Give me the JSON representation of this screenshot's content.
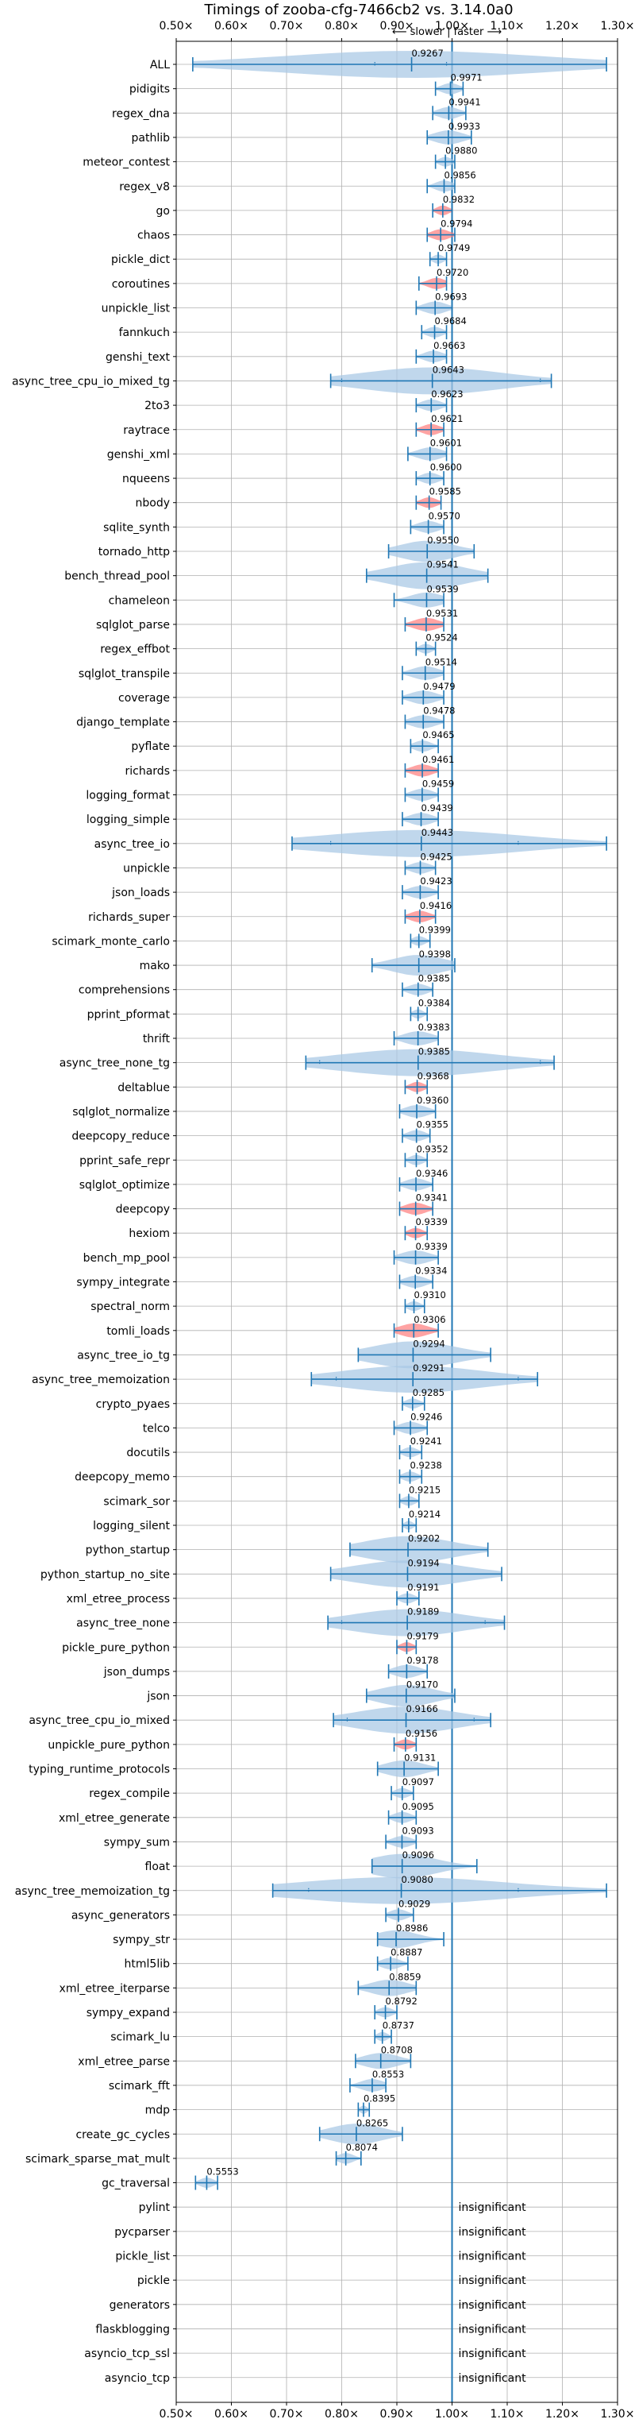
{
  "chart_data": {
    "type": "violin",
    "title": "Timings of zooba-cfg-7466cb2 vs. 3.14.0a0",
    "direction_hint": "⟵ slower | faster ⟶",
    "xlabel": "",
    "ylabel": "",
    "xlim": [
      0.5,
      1.3
    ],
    "x_ticks": [
      0.5,
      0.6,
      0.7,
      0.8,
      0.9,
      1.0,
      1.1,
      1.2,
      1.3
    ],
    "x_tick_labels": [
      "0.50×",
      "0.60×",
      "0.70×",
      "0.80×",
      "0.90×",
      "1.00×",
      "1.10×",
      "1.20×",
      "1.30×"
    ],
    "reference_line": 1.0,
    "grid": true,
    "colors": {
      "normal": "#1f77b4",
      "highlight": "#ff7f7f",
      "body": "#a8c8e4",
      "grid": "#b0b0b0"
    },
    "insignificant_label": "insignificant",
    "benchmarks": [
      {
        "name": "ALL",
        "value": 0.9267,
        "low": 0.53,
        "high": 1.28,
        "q1": 0.86,
        "q3": 0.99,
        "highlight": false
      },
      {
        "name": "pidigits",
        "value": 0.9971,
        "low": 0.97,
        "high": 1.02,
        "highlight": false
      },
      {
        "name": "regex_dna",
        "value": 0.9941,
        "low": 0.965,
        "high": 1.025,
        "highlight": false
      },
      {
        "name": "pathlib",
        "value": 0.9933,
        "low": 0.955,
        "high": 1.035,
        "highlight": false
      },
      {
        "name": "meteor_contest",
        "value": 0.988,
        "low": 0.97,
        "high": 1.005,
        "highlight": false
      },
      {
        "name": "regex_v8",
        "value": 0.9856,
        "low": 0.955,
        "high": 1.005,
        "highlight": false
      },
      {
        "name": "go",
        "value": 0.9832,
        "low": 0.965,
        "high": 1.0,
        "highlight": true
      },
      {
        "name": "chaos",
        "value": 0.9794,
        "low": 0.955,
        "high": 1.005,
        "highlight": true
      },
      {
        "name": "pickle_dict",
        "value": 0.9749,
        "low": 0.96,
        "high": 0.99,
        "highlight": false
      },
      {
        "name": "coroutines",
        "value": 0.972,
        "low": 0.94,
        "high": 0.99,
        "highlight": true
      },
      {
        "name": "unpickle_list",
        "value": 0.9693,
        "low": 0.935,
        "high": 1.0,
        "highlight": false
      },
      {
        "name": "fannkuch",
        "value": 0.9684,
        "low": 0.945,
        "high": 0.99,
        "highlight": false
      },
      {
        "name": "genshi_text",
        "value": 0.9663,
        "low": 0.935,
        "high": 0.99,
        "highlight": false
      },
      {
        "name": "async_tree_cpu_io_mixed_tg",
        "value": 0.9643,
        "low": 0.78,
        "high": 1.18,
        "q1": 0.8,
        "q3": 1.16,
        "highlight": false
      },
      {
        "name": "2to3",
        "value": 0.9623,
        "low": 0.935,
        "high": 0.99,
        "highlight": false
      },
      {
        "name": "raytrace",
        "value": 0.9621,
        "low": 0.935,
        "high": 0.985,
        "highlight": true
      },
      {
        "name": "genshi_xml",
        "value": 0.9601,
        "low": 0.92,
        "high": 0.99,
        "highlight": false
      },
      {
        "name": "nqueens",
        "value": 0.96,
        "low": 0.935,
        "high": 0.985,
        "highlight": false
      },
      {
        "name": "nbody",
        "value": 0.9585,
        "low": 0.935,
        "high": 0.98,
        "highlight": true
      },
      {
        "name": "sqlite_synth",
        "value": 0.957,
        "low": 0.925,
        "high": 0.985,
        "highlight": false
      },
      {
        "name": "tornado_http",
        "value": 0.955,
        "low": 0.885,
        "high": 1.04,
        "highlight": false
      },
      {
        "name": "bench_thread_pool",
        "value": 0.9541,
        "low": 0.845,
        "high": 1.065,
        "highlight": false
      },
      {
        "name": "chameleon",
        "value": 0.9539,
        "low": 0.895,
        "high": 0.985,
        "highlight": false
      },
      {
        "name": "sqlglot_parse",
        "value": 0.9531,
        "low": 0.915,
        "high": 0.985,
        "highlight": true
      },
      {
        "name": "regex_effbot",
        "value": 0.9524,
        "low": 0.935,
        "high": 0.97,
        "highlight": false
      },
      {
        "name": "sqlglot_transpile",
        "value": 0.9514,
        "low": 0.91,
        "high": 0.985,
        "highlight": false
      },
      {
        "name": "coverage",
        "value": 0.9479,
        "low": 0.91,
        "high": 0.985,
        "highlight": false
      },
      {
        "name": "django_template",
        "value": 0.9478,
        "low": 0.915,
        "high": 0.985,
        "highlight": false
      },
      {
        "name": "pyflate",
        "value": 0.9465,
        "low": 0.925,
        "high": 0.975,
        "highlight": false
      },
      {
        "name": "richards",
        "value": 0.9461,
        "low": 0.915,
        "high": 0.975,
        "highlight": true
      },
      {
        "name": "logging_format",
        "value": 0.9459,
        "low": 0.915,
        "high": 0.975,
        "highlight": false
      },
      {
        "name": "logging_simple",
        "value": 0.9439,
        "low": 0.91,
        "high": 0.975,
        "highlight": false
      },
      {
        "name": "async_tree_io",
        "value": 0.9443,
        "low": 0.71,
        "high": 1.28,
        "q1": 0.78,
        "q3": 1.12,
        "highlight": false
      },
      {
        "name": "unpickle",
        "value": 0.9425,
        "low": 0.915,
        "high": 0.97,
        "highlight": false
      },
      {
        "name": "json_loads",
        "value": 0.9423,
        "low": 0.91,
        "high": 0.975,
        "highlight": false
      },
      {
        "name": "richards_super",
        "value": 0.9416,
        "low": 0.915,
        "high": 0.97,
        "highlight": true
      },
      {
        "name": "scimark_monte_carlo",
        "value": 0.9399,
        "low": 0.925,
        "high": 0.96,
        "highlight": false
      },
      {
        "name": "mako",
        "value": 0.9398,
        "low": 0.855,
        "high": 1.005,
        "highlight": false
      },
      {
        "name": "comprehensions",
        "value": 0.9385,
        "low": 0.91,
        "high": 0.965,
        "highlight": false
      },
      {
        "name": "pprint_pformat",
        "value": 0.9384,
        "low": 0.925,
        "high": 0.955,
        "highlight": false
      },
      {
        "name": "thrift",
        "value": 0.9383,
        "low": 0.895,
        "high": 0.975,
        "highlight": false
      },
      {
        "name": "async_tree_none_tg",
        "value": 0.9385,
        "low": 0.735,
        "high": 1.185,
        "q1": 0.76,
        "q3": 1.16,
        "highlight": false
      },
      {
        "name": "deltablue",
        "value": 0.9368,
        "low": 0.915,
        "high": 0.955,
        "highlight": true
      },
      {
        "name": "sqlglot_normalize",
        "value": 0.936,
        "low": 0.905,
        "high": 0.97,
        "highlight": false
      },
      {
        "name": "deepcopy_reduce",
        "value": 0.9355,
        "low": 0.91,
        "high": 0.96,
        "highlight": false
      },
      {
        "name": "pprint_safe_repr",
        "value": 0.9352,
        "low": 0.915,
        "high": 0.955,
        "highlight": false
      },
      {
        "name": "sqlglot_optimize",
        "value": 0.9346,
        "low": 0.905,
        "high": 0.965,
        "highlight": false
      },
      {
        "name": "deepcopy",
        "value": 0.9341,
        "low": 0.905,
        "high": 0.965,
        "highlight": true
      },
      {
        "name": "hexiom",
        "value": 0.9339,
        "low": 0.915,
        "high": 0.955,
        "highlight": true
      },
      {
        "name": "bench_mp_pool",
        "value": 0.9339,
        "low": 0.895,
        "high": 0.975,
        "highlight": false
      },
      {
        "name": "sympy_integrate",
        "value": 0.9334,
        "low": 0.905,
        "high": 0.965,
        "highlight": false
      },
      {
        "name": "spectral_norm",
        "value": 0.931,
        "low": 0.915,
        "high": 0.95,
        "highlight": false
      },
      {
        "name": "tomli_loads",
        "value": 0.9306,
        "low": 0.895,
        "high": 0.975,
        "highlight": true
      },
      {
        "name": "async_tree_io_tg",
        "value": 0.9294,
        "low": 0.83,
        "high": 1.07,
        "highlight": false
      },
      {
        "name": "async_tree_memoization",
        "value": 0.9291,
        "low": 0.745,
        "high": 1.155,
        "q1": 0.79,
        "q3": 1.12,
        "highlight": false
      },
      {
        "name": "crypto_pyaes",
        "value": 0.9285,
        "low": 0.91,
        "high": 0.95,
        "highlight": false
      },
      {
        "name": "telco",
        "value": 0.9246,
        "low": 0.895,
        "high": 0.955,
        "highlight": false
      },
      {
        "name": "docutils",
        "value": 0.9241,
        "low": 0.905,
        "high": 0.945,
        "highlight": false
      },
      {
        "name": "deepcopy_memo",
        "value": 0.9238,
        "low": 0.905,
        "high": 0.945,
        "highlight": false
      },
      {
        "name": "scimark_sor",
        "value": 0.9215,
        "low": 0.905,
        "high": 0.94,
        "highlight": false
      },
      {
        "name": "logging_silent",
        "value": 0.9214,
        "low": 0.91,
        "high": 0.935,
        "highlight": false
      },
      {
        "name": "python_startup",
        "value": 0.9202,
        "low": 0.815,
        "high": 1.065,
        "highlight": false
      },
      {
        "name": "python_startup_no_site",
        "value": 0.9194,
        "low": 0.78,
        "high": 1.09,
        "highlight": false
      },
      {
        "name": "xml_etree_process",
        "value": 0.9191,
        "low": 0.9,
        "high": 0.94,
        "highlight": false
      },
      {
        "name": "async_tree_none",
        "value": 0.9189,
        "low": 0.775,
        "high": 1.095,
        "q1": 0.8,
        "q3": 1.06,
        "highlight": false
      },
      {
        "name": "pickle_pure_python",
        "value": 0.9179,
        "low": 0.9,
        "high": 0.935,
        "highlight": true
      },
      {
        "name": "json_dumps",
        "value": 0.9178,
        "low": 0.885,
        "high": 0.955,
        "highlight": false
      },
      {
        "name": "json",
        "value": 0.917,
        "low": 0.845,
        "high": 1.005,
        "highlight": false
      },
      {
        "name": "async_tree_cpu_io_mixed",
        "value": 0.9166,
        "low": 0.785,
        "high": 1.07,
        "q1": 0.81,
        "q3": 1.04,
        "highlight": false
      },
      {
        "name": "unpickle_pure_python",
        "value": 0.9156,
        "low": 0.895,
        "high": 0.935,
        "highlight": true
      },
      {
        "name": "typing_runtime_protocols",
        "value": 0.9131,
        "low": 0.865,
        "high": 0.975,
        "highlight": false
      },
      {
        "name": "regex_compile",
        "value": 0.9097,
        "low": 0.89,
        "high": 0.93,
        "highlight": false
      },
      {
        "name": "xml_etree_generate",
        "value": 0.9095,
        "low": 0.885,
        "high": 0.935,
        "highlight": false
      },
      {
        "name": "sympy_sum",
        "value": 0.9093,
        "low": 0.88,
        "high": 0.935,
        "highlight": false
      },
      {
        "name": "float",
        "value": 0.9096,
        "low": 0.855,
        "high": 1.045,
        "highlight": false
      },
      {
        "name": "async_tree_memoization_tg",
        "value": 0.908,
        "low": 0.675,
        "high": 1.28,
        "q1": 0.74,
        "q3": 1.12,
        "highlight": false
      },
      {
        "name": "async_generators",
        "value": 0.9029,
        "low": 0.88,
        "high": 0.93,
        "highlight": false
      },
      {
        "name": "sympy_str",
        "value": 0.8986,
        "low": 0.865,
        "high": 0.985,
        "highlight": false
      },
      {
        "name": "html5lib",
        "value": 0.8887,
        "low": 0.865,
        "high": 0.92,
        "highlight": false
      },
      {
        "name": "xml_etree_iterparse",
        "value": 0.8859,
        "low": 0.83,
        "high": 0.935,
        "highlight": false
      },
      {
        "name": "sympy_expand",
        "value": 0.8792,
        "low": 0.86,
        "high": 0.9,
        "highlight": false
      },
      {
        "name": "scimark_lu",
        "value": 0.8737,
        "low": 0.86,
        "high": 0.89,
        "highlight": false
      },
      {
        "name": "xml_etree_parse",
        "value": 0.8708,
        "low": 0.825,
        "high": 0.925,
        "highlight": false
      },
      {
        "name": "scimark_fft",
        "value": 0.8553,
        "low": 0.815,
        "high": 0.88,
        "highlight": false
      },
      {
        "name": "mdp",
        "value": 0.8395,
        "low": 0.83,
        "high": 0.85,
        "highlight": false
      },
      {
        "name": "create_gc_cycles",
        "value": 0.8265,
        "low": 0.76,
        "high": 0.91,
        "highlight": false
      },
      {
        "name": "scimark_sparse_mat_mult",
        "value": 0.8074,
        "low": 0.79,
        "high": 0.835,
        "highlight": false
      },
      {
        "name": "gc_traversal",
        "value": 0.5553,
        "low": 0.535,
        "high": 0.575,
        "highlight": false
      },
      {
        "name": "pylint",
        "insignificant": true
      },
      {
        "name": "pycparser",
        "insignificant": true
      },
      {
        "name": "pickle_list",
        "insignificant": true
      },
      {
        "name": "pickle",
        "insignificant": true
      },
      {
        "name": "generators",
        "insignificant": true
      },
      {
        "name": "flaskblogging",
        "insignificant": true
      },
      {
        "name": "asyncio_tcp_ssl",
        "insignificant": true
      },
      {
        "name": "asyncio_tcp",
        "insignificant": true
      }
    ]
  }
}
